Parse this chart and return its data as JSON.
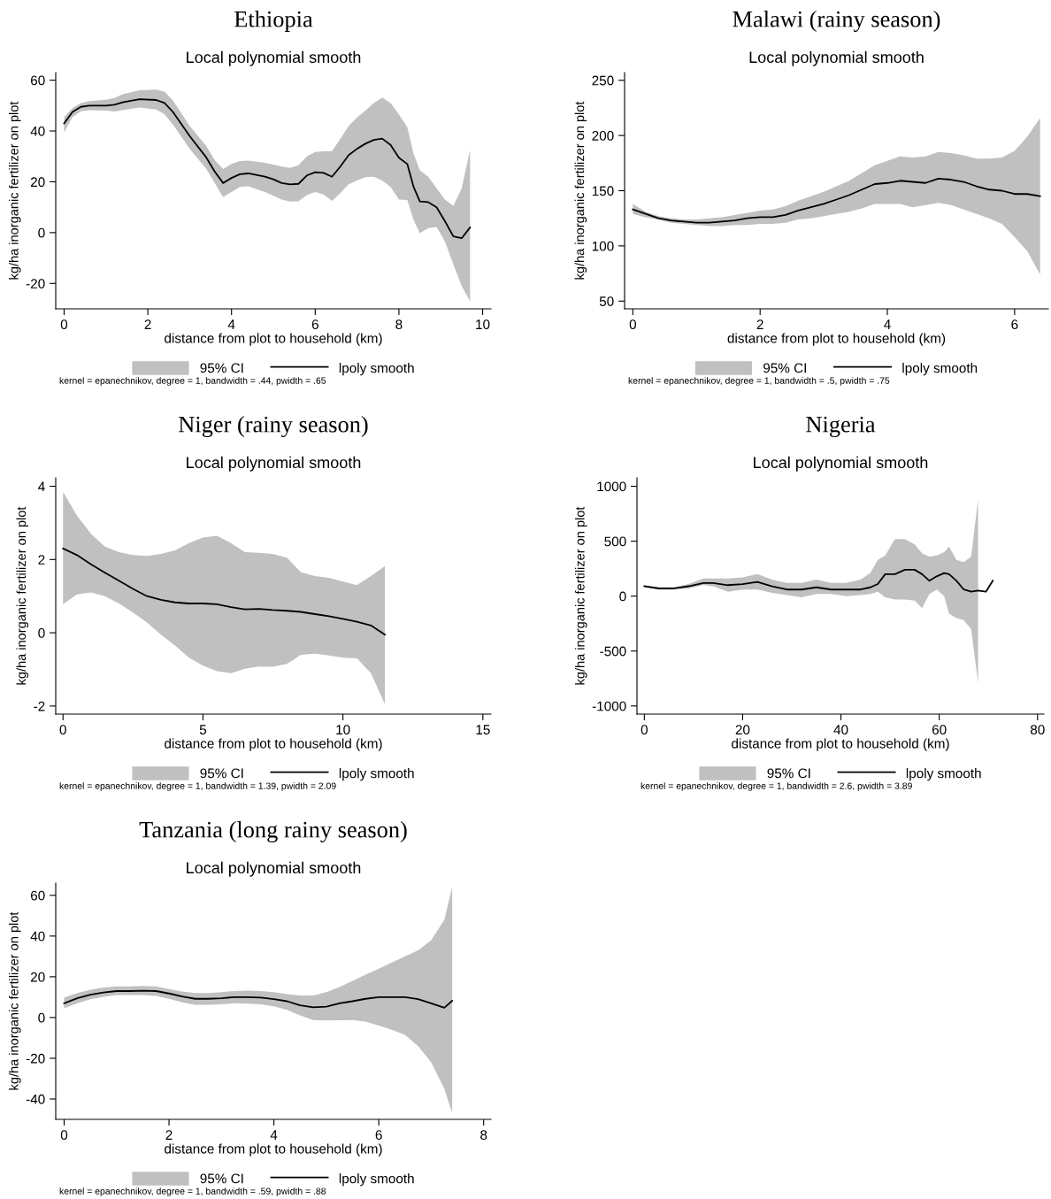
{
  "chart_data": [
    {
      "type": "line",
      "title": "Ethiopia",
      "subtitle": "Local polynomial smooth",
      "xlabel": "distance from plot to household (km)",
      "ylabel": "kg/ha inorganic fertilizer on plot",
      "legend": "bottom",
      "annotations": [
        "95% CI",
        "kernel = epanechnikov, degree = 1, bandwidth = .44, pwidth = .65"
      ],
      "xlim": [
        -0.2,
        10.2
      ],
      "xticks": [
        0,
        2,
        4,
        6,
        8,
        10
      ],
      "ylim": [
        -30,
        63
      ],
      "yticks": [
        -20,
        0,
        20,
        40,
        60
      ],
      "x": [
        0,
        0.2,
        0.4,
        0.6,
        1.0,
        1.2,
        1.4,
        1.8,
        2.2,
        2.4,
        2.6,
        3.0,
        3.4,
        3.6,
        3.8,
        4.0,
        4.2,
        4.4,
        4.8,
        5.0,
        5.2,
        5.4,
        5.6,
        5.8,
        6.0,
        6.2,
        6.4,
        6.6,
        6.8,
        7.0,
        7.2,
        7.4,
        7.6,
        7.8,
        8.0,
        8.2,
        8.35,
        8.5,
        8.7,
        8.9,
        9.1,
        9.3,
        9.5,
        9.7
      ],
      "series": [
        {
          "name": "lpoly smooth",
          "color": "#000000",
          "values": [
            43,
            47.5,
            49.5,
            50,
            50,
            50.3,
            51.3,
            52.5,
            52.2,
            51,
            47.5,
            38,
            29.5,
            24,
            19.5,
            21.5,
            23,
            23.3,
            22,
            21,
            19.5,
            19,
            19.2,
            22.5,
            23.8,
            23.5,
            22,
            26,
            30.5,
            33,
            35,
            36.5,
            37,
            34.5,
            29.5,
            27,
            18,
            12.3,
            12,
            10,
            4.5,
            -1.5,
            -2.2,
            2
          ],
          "lower": [
            39.5,
            45.5,
            47.8,
            48.2,
            48,
            47.7,
            48.2,
            49.2,
            48.5,
            46.5,
            42.5,
            33,
            25,
            19.5,
            14,
            16,
            18,
            18.2,
            16,
            14.5,
            13,
            12.2,
            12.3,
            14.8,
            16,
            15,
            12.5,
            15.5,
            19,
            20.5,
            21.8,
            22,
            20.5,
            18,
            13,
            12.8,
            5,
            -0.2,
            1.8,
            2.2,
            -3.5,
            -12.5,
            -21,
            -27
          ],
          "upper": [
            45.5,
            49,
            51,
            51.8,
            52.3,
            53,
            54.5,
            56,
            56.3,
            55.5,
            52,
            42,
            34,
            28.5,
            25,
            27,
            28.2,
            28.3,
            27.5,
            26.8,
            26,
            25.5,
            26.5,
            30,
            31.7,
            32,
            32,
            37,
            42,
            45.3,
            48,
            51,
            53.2,
            51,
            46.5,
            41.5,
            31,
            24.5,
            22,
            17.5,
            13,
            10.5,
            17.5,
            32.5
          ]
        }
      ]
    },
    {
      "type": "line",
      "title": "Malawi (rainy season)",
      "subtitle": "Local polynomial smooth",
      "xlabel": "distance from plot to household (km)",
      "ylabel": "kg/ha inorganic fertilizer on plot",
      "legend": "bottom",
      "annotations": [
        "95% CI",
        "kernel = epanechnikov, degree = 1, bandwidth = .5, pwidth = .75"
      ],
      "xlim": [
        -0.13,
        6.53
      ],
      "xticks": [
        0,
        2,
        4,
        6
      ],
      "ylim": [
        43,
        257
      ],
      "yticks": [
        50,
        100,
        150,
        200,
        250
      ],
      "x": [
        0,
        0.2,
        0.4,
        0.6,
        0.8,
        1.0,
        1.2,
        1.4,
        1.6,
        1.8,
        2.0,
        2.2,
        2.4,
        2.6,
        2.8,
        3.0,
        3.2,
        3.4,
        3.6,
        3.8,
        4.0,
        4.2,
        4.4,
        4.6,
        4.8,
        5.0,
        5.2,
        5.4,
        5.6,
        5.8,
        6.0,
        6.2,
        6.4
      ],
      "series": [
        {
          "name": "lpoly smooth",
          "color": "#000000",
          "values": [
            133,
            129,
            125,
            123,
            122,
            121,
            121,
            122,
            123,
            125,
            126,
            126,
            128,
            132,
            135,
            138,
            142,
            146,
            151,
            156,
            157,
            159,
            158,
            157,
            161,
            160,
            158,
            154,
            151,
            150,
            147,
            147,
            145
          ],
          "lower": [
            129,
            126,
            124,
            121,
            120,
            119,
            118,
            118,
            119,
            119,
            120,
            120,
            121,
            124,
            125,
            127,
            129,
            131,
            134,
            138,
            138,
            138,
            135,
            137,
            139,
            137,
            133,
            129,
            125,
            120,
            108,
            95,
            74
          ],
          "upper": [
            138,
            131,
            127,
            125,
            124,
            124,
            125,
            126,
            128,
            130,
            132,
            133,
            136,
            141,
            145,
            149,
            154,
            159,
            166,
            173,
            177,
            181,
            180,
            181,
            185,
            184,
            182,
            179,
            179,
            180,
            186,
            199,
            216
          ]
        }
      ]
    },
    {
      "type": "line",
      "title": "Niger (rainy season)",
      "subtitle": "Local polynomial smooth",
      "xlabel": "distance from plot to household (km)",
      "ylabel": "kg/ha inorganic fertilizer on plot",
      "legend": "bottom",
      "annotations": [
        "95% CI",
        "kernel = epanechnikov, degree = 1, bandwidth = 1.39, pwidth = 2.09"
      ],
      "xlim": [
        -0.26,
        15.29
      ],
      "xticks": [
        0,
        5,
        10,
        15
      ],
      "ylim": [
        -2.22,
        4.23
      ],
      "yticks": [
        -2,
        0,
        2,
        4
      ],
      "x": [
        0,
        0.5,
        1,
        1.5,
        2,
        2.5,
        3,
        3.5,
        4,
        4.5,
        5,
        5.5,
        6,
        6.5,
        7,
        7.5,
        8,
        8.5,
        9,
        9.5,
        10,
        10.5,
        11,
        11.5
      ],
      "series": [
        {
          "name": "lpoly smooth",
          "color": "#000000",
          "values": [
            2.3,
            2.12,
            1.87,
            1.64,
            1.42,
            1.2,
            1.0,
            0.9,
            0.83,
            0.8,
            0.8,
            0.78,
            0.7,
            0.64,
            0.65,
            0.62,
            0.6,
            0.57,
            0.51,
            0.45,
            0.38,
            0.3,
            0.2,
            -0.05
          ],
          "lower": [
            0.78,
            1.05,
            1.1,
            1.0,
            0.8,
            0.55,
            0.28,
            -0.05,
            -0.35,
            -0.68,
            -0.9,
            -1.05,
            -1.1,
            -0.98,
            -0.92,
            -0.93,
            -0.85,
            -0.6,
            -0.57,
            -0.62,
            -0.68,
            -0.7,
            -1.1,
            -1.95
          ],
          "upper": [
            3.85,
            3.2,
            2.7,
            2.35,
            2.2,
            2.12,
            2.1,
            2.15,
            2.25,
            2.45,
            2.6,
            2.65,
            2.45,
            2.2,
            2.18,
            2.15,
            2.05,
            1.65,
            1.55,
            1.5,
            1.4,
            1.3,
            1.55,
            1.82
          ]
        }
      ]
    },
    {
      "type": "line",
      "title": "Nigeria",
      "subtitle": "Local polynomial smooth",
      "xlabel": "distance from plot to household (km)",
      "ylabel": "kg/ha inorganic fertilizer on plot",
      "legend": "bottom",
      "annotations": [
        "95% CI",
        "kernel = epanechnikov, degree = 1, bandwidth = 2.6, pwidth = 3.89"
      ],
      "xlim": [
        -1.5,
        81.3
      ],
      "xticks": [
        0,
        20,
        40,
        60,
        80
      ],
      "ylim": [
        -1074,
        1077
      ],
      "yticks": [
        -1000,
        -500,
        0,
        500,
        1000
      ],
      "x": [
        0,
        3,
        6,
        9,
        12,
        14,
        17,
        20,
        23,
        26,
        29,
        32,
        35,
        38,
        41,
        44,
        46,
        47.5,
        49,
        51,
        53,
        55,
        56.5,
        58,
        59.5,
        61,
        62,
        63.5,
        65,
        66.5,
        67.9,
        69.5,
        70.9
      ],
      "series": [
        {
          "name": "lpoly smooth",
          "color": "#000000",
          "values": [
            90,
            70,
            70,
            90,
            120,
            120,
            100,
            110,
            130,
            90,
            60,
            60,
            80,
            60,
            60,
            60,
            80,
            110,
            200,
            200,
            240,
            240,
            200,
            140,
            180,
            210,
            200,
            140,
            60,
            40,
            50,
            40,
            140
          ],
          "lower": [
            80,
            60,
            60,
            70,
            100,
            90,
            40,
            60,
            60,
            30,
            10,
            -10,
            20,
            20,
            0,
            10,
            20,
            40,
            -10,
            -30,
            -30,
            -40,
            -110,
            20,
            60,
            0,
            -160,
            -200,
            -220,
            -300,
            -790,
            null,
            null
          ],
          "upper": [
            90,
            80,
            80,
            110,
            160,
            160,
            160,
            170,
            200,
            150,
            120,
            120,
            150,
            120,
            120,
            150,
            210,
            330,
            370,
            520,
            520,
            470,
            390,
            360,
            370,
            400,
            450,
            330,
            310,
            360,
            880,
            null,
            null
          ]
        }
      ]
    },
    {
      "type": "line",
      "title": "Tanzania (long rainy season)",
      "subtitle": "Local polynomial smooth",
      "xlabel": "distance from plot to household (km)",
      "ylabel": "kg/ha inorganic fertilizer on plot",
      "legend": "bottom",
      "annotations": [
        "95% CI",
        "kernel = epanechnikov, degree = 1, bandwidth = .59, pwidth = .88"
      ],
      "xlim": [
        -0.16,
        8.14
      ],
      "xticks": [
        0,
        2,
        4,
        6,
        8
      ],
      "ylim": [
        -50,
        66
      ],
      "yticks": [
        -40,
        -20,
        0,
        20,
        40,
        60
      ],
      "x": [
        0,
        0.25,
        0.5,
        0.75,
        1.0,
        1.25,
        1.5,
        1.75,
        2.0,
        2.25,
        2.5,
        2.75,
        3.0,
        3.25,
        3.5,
        3.75,
        4.0,
        4.25,
        4.5,
        4.75,
        5.0,
        5.25,
        5.5,
        5.75,
        6.0,
        6.25,
        6.5,
        6.75,
        7.0,
        7.25,
        7.4
      ],
      "series": [
        {
          "name": "lpoly smooth",
          "color": "#000000",
          "values": [
            7,
            9.5,
            11.2,
            12.3,
            13,
            13,
            13.2,
            13,
            11.8,
            10.3,
            9.2,
            9.2,
            9.5,
            10,
            10,
            9.8,
            9,
            8,
            6,
            5,
            5.3,
            7,
            8,
            9.2,
            10,
            10,
            10,
            9,
            7,
            4.8,
            8.2
          ],
          "lower": [
            4.5,
            7,
            9,
            10.2,
            11,
            11,
            11,
            10.6,
            9.2,
            7.5,
            6.3,
            6.3,
            6.5,
            7,
            6.8,
            6.5,
            5.5,
            3.8,
            1,
            -1.2,
            -1.5,
            -1.3,
            -1.2,
            -2,
            -4,
            -6,
            -8.5,
            -14,
            -22,
            -35,
            -47
          ],
          "upper": [
            9.8,
            12,
            13.7,
            14.7,
            15.3,
            15.3,
            15.5,
            15.3,
            14,
            12.8,
            12,
            12,
            12.5,
            13,
            13.2,
            13,
            12.5,
            11.5,
            10.8,
            10.8,
            12.5,
            15,
            18,
            21,
            24,
            27,
            30,
            33,
            38,
            48,
            64
          ]
        }
      ]
    }
  ]
}
